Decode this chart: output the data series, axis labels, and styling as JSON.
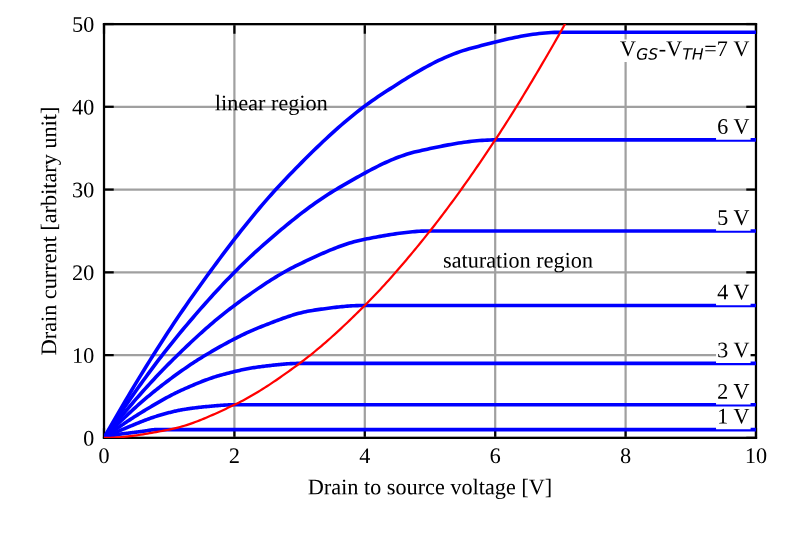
{
  "chart_data": {
    "type": "line",
    "xlabel": "Drain to source voltage [V]",
    "ylabel": "Drain current [arbitary unit]",
    "xlim": [
      0,
      10
    ],
    "ylim": [
      0,
      50
    ],
    "xticks": [
      0,
      2,
      4,
      6,
      8,
      10
    ],
    "yticks": [
      0,
      10,
      20,
      30,
      40,
      50
    ],
    "grid": true,
    "marker": "none",
    "line_style": "solid",
    "annotations": [
      "linear region",
      "saturation region"
    ],
    "series": [
      {
        "name": "1 V",
        "color": "#0000ff",
        "x": [
          0,
          0.2,
          0.4,
          0.6,
          0.8,
          1,
          10
        ],
        "values": [
          0,
          0.4,
          0.6,
          0.8,
          1,
          1,
          1
        ]
      },
      {
        "name": "2 V",
        "color": "#0000ff",
        "x": [
          0,
          0.4,
          0.8,
          1.2,
          1.6,
          2,
          10
        ],
        "values": [
          0,
          1.4,
          2.6,
          3.4,
          3.8,
          4,
          4
        ]
      },
      {
        "name": "3 V",
        "color": "#0000ff",
        "x": [
          0,
          0.6,
          1.2,
          1.8,
          2.4,
          3,
          10
        ],
        "values": [
          0,
          3.2,
          5.8,
          7.6,
          8.6,
          9,
          9
        ]
      },
      {
        "name": "4 V",
        "color": "#0000ff",
        "x": [
          0,
          0.8,
          1.6,
          2.4,
          3.2,
          4,
          10
        ],
        "values": [
          0,
          5.8,
          10.2,
          13.4,
          15.4,
          16,
          16
        ]
      },
      {
        "name": "5 V",
        "color": "#0000ff",
        "x": [
          0,
          1,
          2,
          3,
          4,
          5,
          10
        ],
        "values": [
          0,
          9,
          16,
          21,
          24,
          25,
          25
        ]
      },
      {
        "name": "6 V",
        "color": "#0000ff",
        "x": [
          0,
          1.2,
          2.4,
          3.6,
          4.8,
          6,
          10
        ],
        "values": [
          0,
          13,
          23,
          30.2,
          34.6,
          36,
          36
        ]
      },
      {
        "name": "V$_{GS}$-V$_{TH}$=7 V",
        "color": "#0000ff",
        "x": [
          0,
          1.4,
          2.8,
          4.2,
          5.6,
          7,
          10
        ],
        "values": [
          0,
          17.6,
          31.4,
          41.2,
          47,
          49,
          49
        ]
      },
      {
        "color": "#ff0000",
        "x": [
          0,
          1,
          2,
          3,
          4,
          5,
          6,
          7,
          7.07
        ],
        "values": [
          0,
          1,
          4,
          9,
          16,
          25,
          36,
          49,
          50
        ]
      }
    ]
  }
}
